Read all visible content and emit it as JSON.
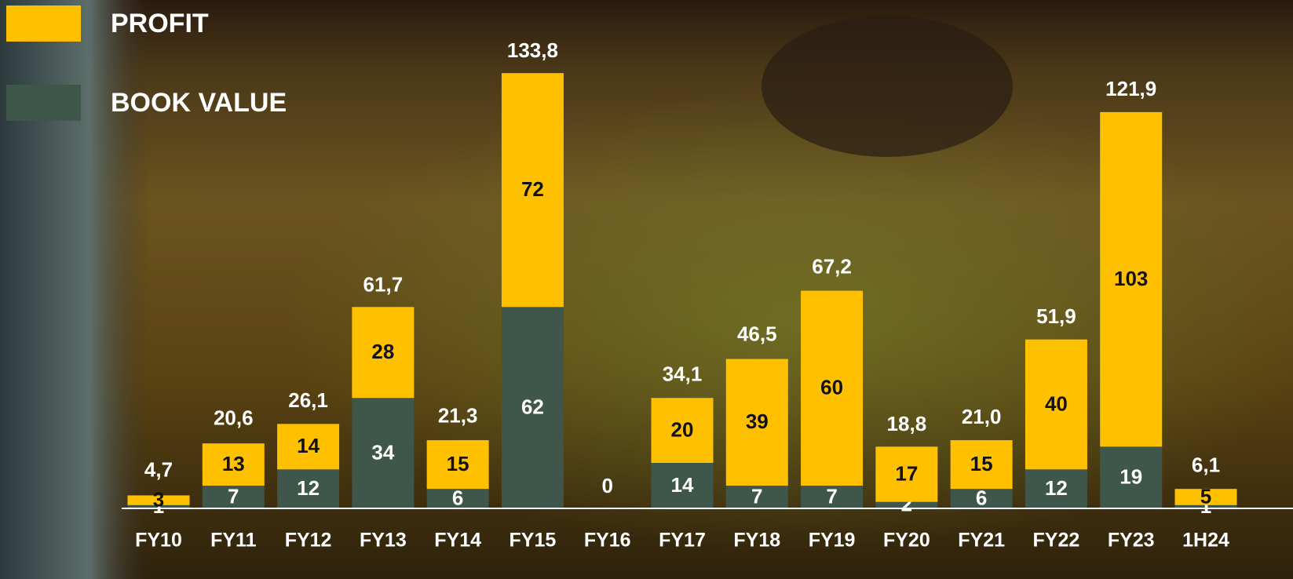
{
  "chart_data": {
    "type": "stacked-bar",
    "categories": [
      "FY10",
      "FY11",
      "FY12",
      "FY13",
      "FY14",
      "FY15",
      "FY16",
      "FY17",
      "FY18",
      "FY19",
      "FY20",
      "FY21",
      "FY22",
      "FY23",
      "1H24"
    ],
    "series": [
      {
        "name": "BOOK VALUE",
        "color": "#3f564a",
        "values": [
          1,
          7,
          12,
          34,
          6,
          62,
          0,
          14,
          7,
          7,
          2,
          6,
          12,
          19,
          1
        ]
      },
      {
        "name": "PROFIT",
        "color": "#ffc000",
        "values": [
          3,
          13,
          14,
          28,
          15,
          72,
          null,
          20,
          39,
          60,
          17,
          15,
          40,
          103,
          5
        ]
      }
    ],
    "totals": [
      4.7,
      20.6,
      26.1,
      61.7,
      21.3,
      133.8,
      null,
      34.1,
      46.5,
      67.2,
      18.8,
      21.0,
      51.9,
      121.9,
      6.1
    ],
    "total_labels": [
      "4,7",
      "20,6",
      "26,1",
      "61,7",
      "21,3",
      "133,8",
      null,
      "34,1",
      "46,5",
      "67,2",
      "18,8",
      "21,0",
      "51,9",
      "121,9",
      "6,1"
    ]
  }
}
